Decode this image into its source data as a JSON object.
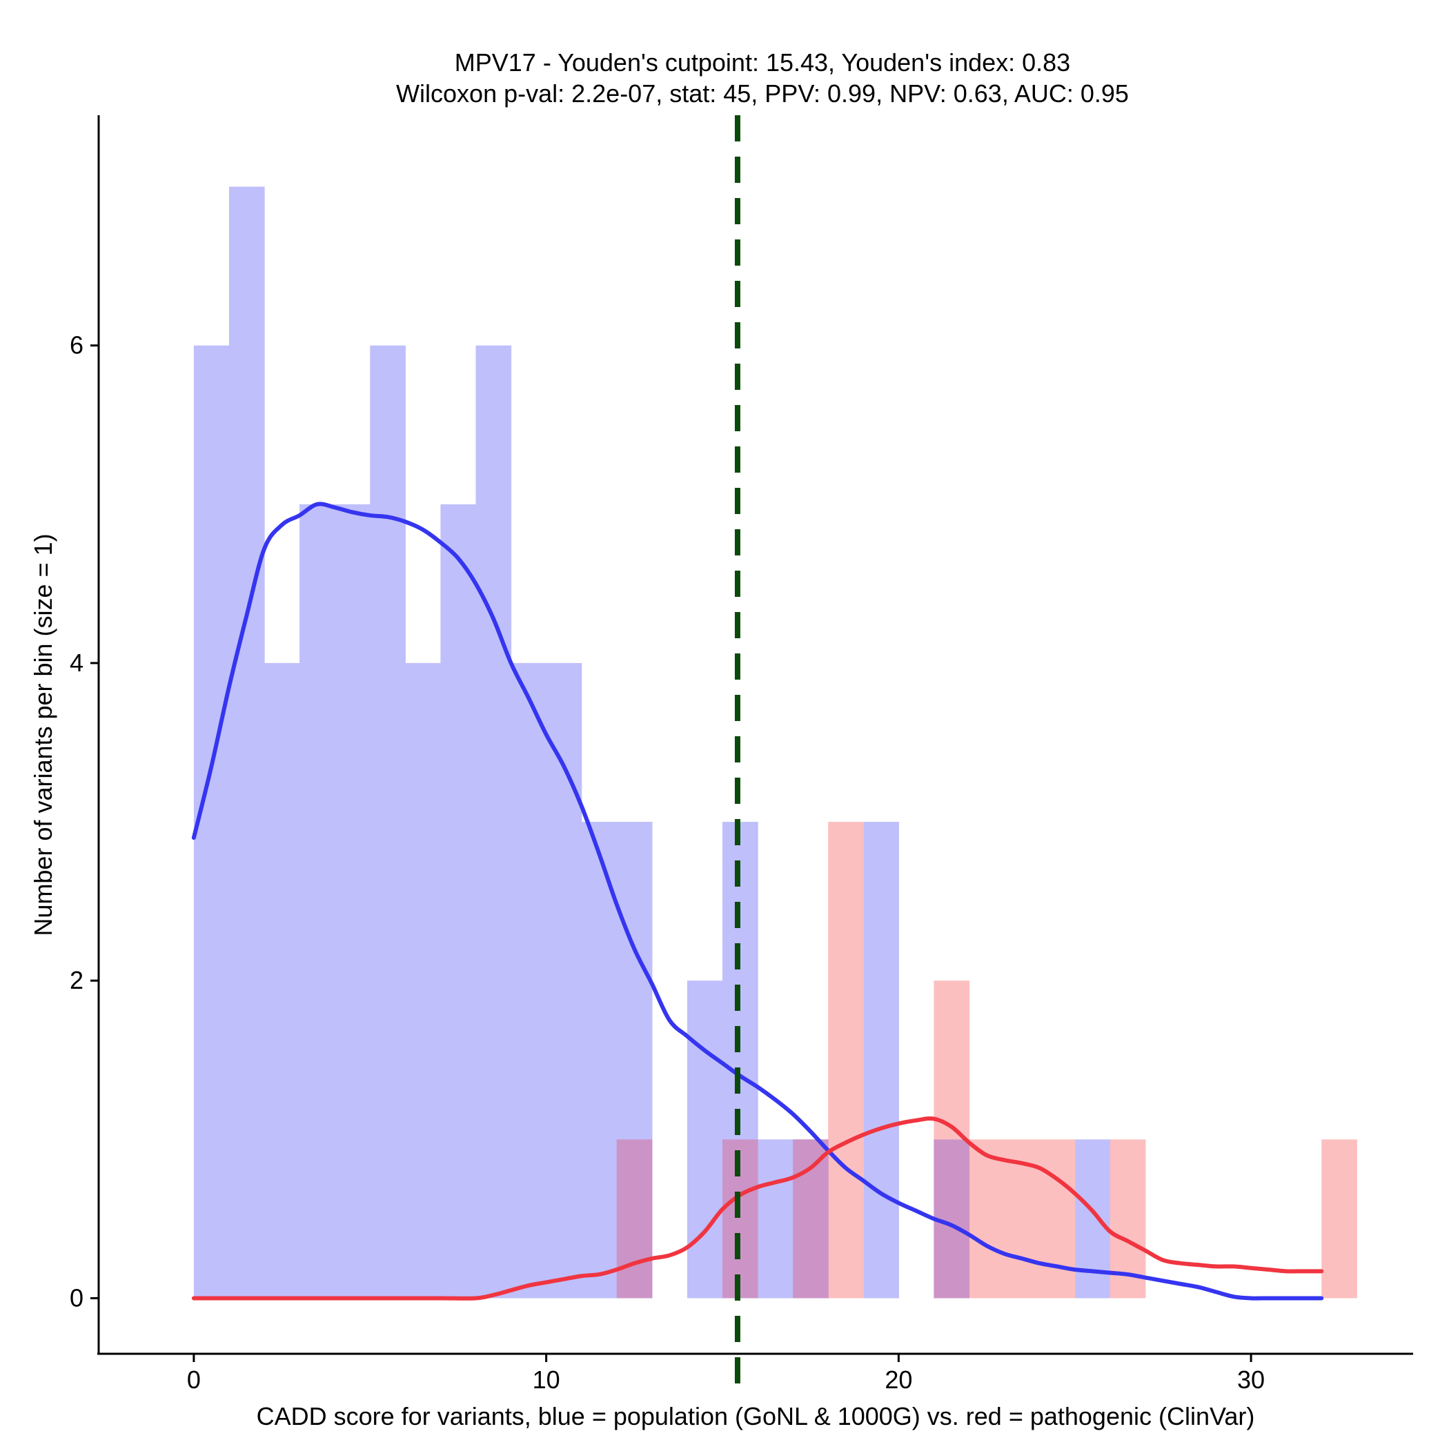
{
  "chart_data": {
    "type": "bar",
    "title": "MPV17 - Youden's cutpoint: 15.43, Youden's index: 0.83",
    "subtitle": "Wilcoxon p-val: 2.2e-07, stat: 45, PPV: 0.99, NPV: 0.63, AUC: 0.95",
    "xlabel": "CADD score for variants, blue = population (GoNL & 1000G) vs. red = pathogenic (ClinVar)",
    "ylabel": "Number of variants per bin (size = 1)",
    "xlim": [
      -2.7,
      34.6
    ],
    "ylim": [
      -0.35,
      7.45
    ],
    "x_ticks": [
      0,
      10,
      20,
      30
    ],
    "y_ticks": [
      0,
      2,
      4,
      6
    ],
    "bin_width": 1,
    "cutpoint": 15.43,
    "colors": {
      "population_bar": "#bfbffb",
      "pathogenic_bar": "#fcbfbf",
      "overlap_bar": "#cc94c6",
      "population_line": "#3535f0",
      "pathogenic_line": "#f03540",
      "cutpoint_line": "#0a4a0a"
    },
    "series": [
      {
        "name": "population (GoNL & 1000G)",
        "bin_starts": [
          0,
          1,
          2,
          3,
          4,
          5,
          6,
          7,
          8,
          9,
          10,
          11,
          12,
          14,
          15,
          16,
          17,
          19,
          21,
          25
        ],
        "values": [
          6,
          7,
          4,
          5,
          5,
          6,
          4,
          5,
          6,
          4,
          4,
          3,
          3,
          2,
          3,
          1,
          1,
          3,
          1,
          1
        ]
      },
      {
        "name": "pathogenic (ClinVar)",
        "bin_starts": [
          12,
          15,
          17,
          18,
          21,
          22,
          23,
          24,
          26,
          32
        ],
        "values": [
          1,
          1,
          1,
          3,
          2,
          1,
          1,
          1,
          1,
          1
        ]
      }
    ],
    "density_population": {
      "x": [
        0,
        0.5,
        1,
        1.5,
        2,
        2.5,
        3,
        3.5,
        4,
        4.5,
        5,
        5.5,
        6,
        6.5,
        7,
        7.5,
        8,
        8.5,
        9,
        9.5,
        10,
        10.5,
        11,
        11.5,
        12,
        12.5,
        13,
        13.5,
        14,
        14.5,
        15,
        15.5,
        16,
        16.5,
        17,
        17.5,
        18,
        18.5,
        19,
        19.5,
        20,
        20.5,
        21,
        21.5,
        22,
        22.5,
        23,
        23.5,
        24,
        24.5,
        25,
        25.5,
        26,
        26.5,
        27,
        27.5,
        28,
        28.5,
        29,
        29.5,
        30,
        30.5,
        31,
        31.5,
        32
      ],
      "y": [
        2.9,
        3.35,
        3.85,
        4.3,
        4.72,
        4.87,
        4.93,
        5.0,
        4.98,
        4.95,
        4.93,
        4.92,
        4.89,
        4.84,
        4.76,
        4.66,
        4.5,
        4.28,
        4.0,
        3.78,
        3.55,
        3.35,
        3.1,
        2.8,
        2.48,
        2.2,
        1.98,
        1.75,
        1.65,
        1.56,
        1.48,
        1.4,
        1.33,
        1.25,
        1.16,
        1.05,
        0.93,
        0.82,
        0.74,
        0.66,
        0.6,
        0.55,
        0.5,
        0.46,
        0.4,
        0.33,
        0.28,
        0.25,
        0.22,
        0.2,
        0.18,
        0.17,
        0.16,
        0.15,
        0.13,
        0.11,
        0.09,
        0.07,
        0.04,
        0.01,
        0.0,
        0.0,
        0.0,
        0.0,
        0.0
      ]
    },
    "density_pathogenic": {
      "x": [
        0,
        1,
        2,
        3,
        4,
        5,
        6,
        7,
        8,
        8.5,
        9,
        9.5,
        10,
        10.5,
        11,
        11.5,
        12,
        12.5,
        13,
        13.5,
        14,
        14.5,
        15,
        15.5,
        16,
        16.5,
        17,
        17.5,
        18,
        18.5,
        19,
        19.5,
        20,
        20.5,
        21,
        21.5,
        22,
        22.5,
        23,
        23.5,
        24,
        24.5,
        25,
        25.5,
        26,
        26.5,
        27,
        27.5,
        28,
        28.5,
        29,
        29.5,
        30,
        30.5,
        31,
        31.5,
        32
      ],
      "y": [
        0,
        0,
        0,
        0,
        0,
        0,
        0,
        0,
        0,
        0.02,
        0.05,
        0.08,
        0.1,
        0.12,
        0.14,
        0.15,
        0.18,
        0.22,
        0.25,
        0.27,
        0.32,
        0.42,
        0.56,
        0.65,
        0.7,
        0.73,
        0.76,
        0.82,
        0.92,
        0.98,
        1.03,
        1.07,
        1.1,
        1.12,
        1.13,
        1.08,
        0.98,
        0.9,
        0.87,
        0.85,
        0.82,
        0.75,
        0.66,
        0.55,
        0.42,
        0.36,
        0.3,
        0.24,
        0.22,
        0.21,
        0.2,
        0.2,
        0.19,
        0.18,
        0.17,
        0.17,
        0.17
      ]
    }
  }
}
